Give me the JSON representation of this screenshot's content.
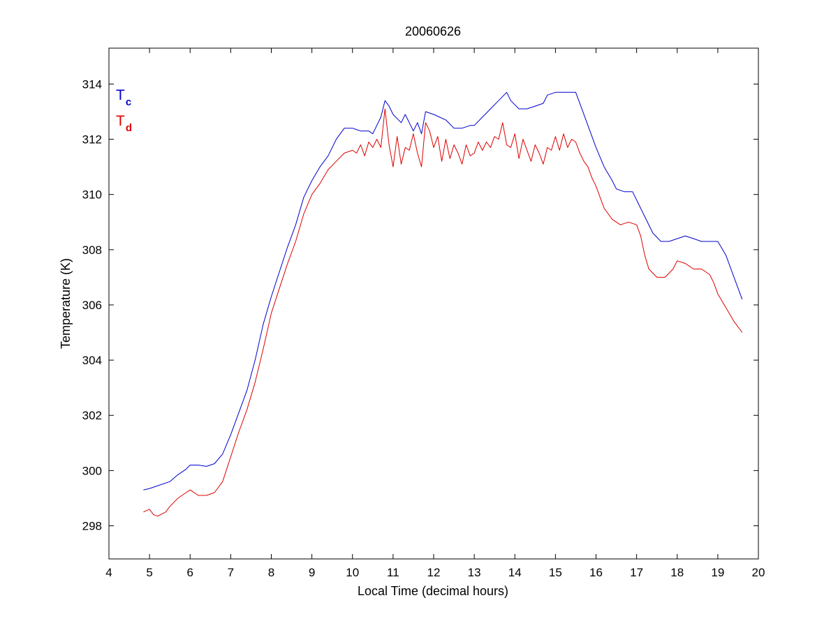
{
  "chart_data": {
    "type": "line",
    "title": "20060626",
    "xlabel": "Local Time (decimal hours)",
    "ylabel": "Temperature (K)",
    "xlim": [
      4,
      20
    ],
    "ylim": [
      296.8,
      315.3
    ],
    "xticks": [
      4,
      5,
      6,
      7,
      8,
      9,
      10,
      11,
      12,
      13,
      14,
      15,
      16,
      17,
      18,
      19,
      20
    ],
    "yticks": [
      298,
      300,
      302,
      304,
      306,
      308,
      310,
      312,
      314
    ],
    "grid": false,
    "legend_position": "top-left",
    "series": [
      {
        "name": "T",
        "subscript": "c",
        "color": "#0000cc",
        "x": [
          4.85,
          5.0,
          5.2,
          5.5,
          5.7,
          5.9,
          6.0,
          6.2,
          6.4,
          6.6,
          6.8,
          7.0,
          7.2,
          7.4,
          7.6,
          7.8,
          8.0,
          8.2,
          8.4,
          8.6,
          8.8,
          9.0,
          9.2,
          9.4,
          9.6,
          9.8,
          10.0,
          10.2,
          10.4,
          10.5,
          10.7,
          10.8,
          10.9,
          11.0,
          11.2,
          11.3,
          11.5,
          11.6,
          11.7,
          11.8,
          12.0,
          12.3,
          12.5,
          12.7,
          12.9,
          13.0,
          13.2,
          13.4,
          13.6,
          13.8,
          13.9,
          14.1,
          14.3,
          14.5,
          14.7,
          14.8,
          15.0,
          15.2,
          15.5,
          15.6,
          15.8,
          16.0,
          16.2,
          16.4,
          16.5,
          16.7,
          16.9,
          17.0,
          17.2,
          17.4,
          17.6,
          17.8,
          18.0,
          18.2,
          18.4,
          18.6,
          18.8,
          19.0,
          19.2,
          19.4,
          19.6
        ],
        "y": [
          299.3,
          299.35,
          299.45,
          299.6,
          299.85,
          300.05,
          300.2,
          300.2,
          300.15,
          300.25,
          300.6,
          301.3,
          302.1,
          302.9,
          304.0,
          305.3,
          306.3,
          307.2,
          308.1,
          308.9,
          309.9,
          310.5,
          311.0,
          311.4,
          312.0,
          312.4,
          312.4,
          312.3,
          312.3,
          312.2,
          312.8,
          313.4,
          313.2,
          312.9,
          312.6,
          312.9,
          312.3,
          312.6,
          312.2,
          313.0,
          312.9,
          312.7,
          312.4,
          312.4,
          312.5,
          312.5,
          312.8,
          313.1,
          313.4,
          313.7,
          313.4,
          313.1,
          313.1,
          313.2,
          313.3,
          313.6,
          313.7,
          313.7,
          313.7,
          313.3,
          312.5,
          311.7,
          311.0,
          310.5,
          310.2,
          310.1,
          310.1,
          309.8,
          309.2,
          308.6,
          308.3,
          308.3,
          308.4,
          308.5,
          308.4,
          308.3,
          308.3,
          308.3,
          307.8,
          307.0,
          306.2
        ]
      },
      {
        "name": "T",
        "subscript": "d",
        "color": "#dd0000",
        "x": [
          4.85,
          5.0,
          5.1,
          5.2,
          5.4,
          5.5,
          5.7,
          5.9,
          6.0,
          6.2,
          6.4,
          6.6,
          6.8,
          7.0,
          7.2,
          7.4,
          7.6,
          7.8,
          8.0,
          8.2,
          8.4,
          8.6,
          8.8,
          9.0,
          9.2,
          9.4,
          9.6,
          9.8,
          10.0,
          10.1,
          10.2,
          10.3,
          10.4,
          10.5,
          10.6,
          10.7,
          10.8,
          10.9,
          11.0,
          11.1,
          11.2,
          11.3,
          11.4,
          11.5,
          11.6,
          11.7,
          11.8,
          11.9,
          12.0,
          12.1,
          12.2,
          12.3,
          12.4,
          12.5,
          12.6,
          12.7,
          12.8,
          12.9,
          13.0,
          13.1,
          13.2,
          13.3,
          13.4,
          13.5,
          13.6,
          13.7,
          13.8,
          13.9,
          14.0,
          14.1,
          14.2,
          14.3,
          14.4,
          14.5,
          14.6,
          14.7,
          14.8,
          14.9,
          15.0,
          15.1,
          15.2,
          15.3,
          15.4,
          15.5,
          15.6,
          15.7,
          15.8,
          15.9,
          16.0,
          16.1,
          16.2,
          16.4,
          16.6,
          16.8,
          17.0,
          17.1,
          17.2,
          17.3,
          17.5,
          17.7,
          17.9,
          18.0,
          18.2,
          18.4,
          18.6,
          18.8,
          18.9,
          19.0,
          19.2,
          19.4,
          19.6
        ],
        "y": [
          298.5,
          298.6,
          298.4,
          298.35,
          298.5,
          298.7,
          299.0,
          299.2,
          299.3,
          299.1,
          299.1,
          299.2,
          299.6,
          300.5,
          301.4,
          302.2,
          303.2,
          304.4,
          305.7,
          306.6,
          307.5,
          308.3,
          309.3,
          310.0,
          310.4,
          310.9,
          311.2,
          311.5,
          311.6,
          311.5,
          311.8,
          311.4,
          311.9,
          311.7,
          312.0,
          311.7,
          313.1,
          311.8,
          311.0,
          312.1,
          311.1,
          311.7,
          311.6,
          312.2,
          311.5,
          311.0,
          312.6,
          312.3,
          311.7,
          312.1,
          311.2,
          312.0,
          311.3,
          311.8,
          311.5,
          311.1,
          311.8,
          311.4,
          311.5,
          311.9,
          311.6,
          311.9,
          311.7,
          312.1,
          312.0,
          312.6,
          311.8,
          311.7,
          312.2,
          311.3,
          312.0,
          311.6,
          311.2,
          311.8,
          311.5,
          311.1,
          311.7,
          311.6,
          312.1,
          311.6,
          312.2,
          311.7,
          312.0,
          311.9,
          311.5,
          311.2,
          311.0,
          310.6,
          310.3,
          309.9,
          309.5,
          309.1,
          308.9,
          309.0,
          308.9,
          308.5,
          307.8,
          307.3,
          307.0,
          307.0,
          307.3,
          307.6,
          307.5,
          307.3,
          307.3,
          307.1,
          306.8,
          306.4,
          305.9,
          305.4,
          305.0
        ]
      }
    ]
  }
}
